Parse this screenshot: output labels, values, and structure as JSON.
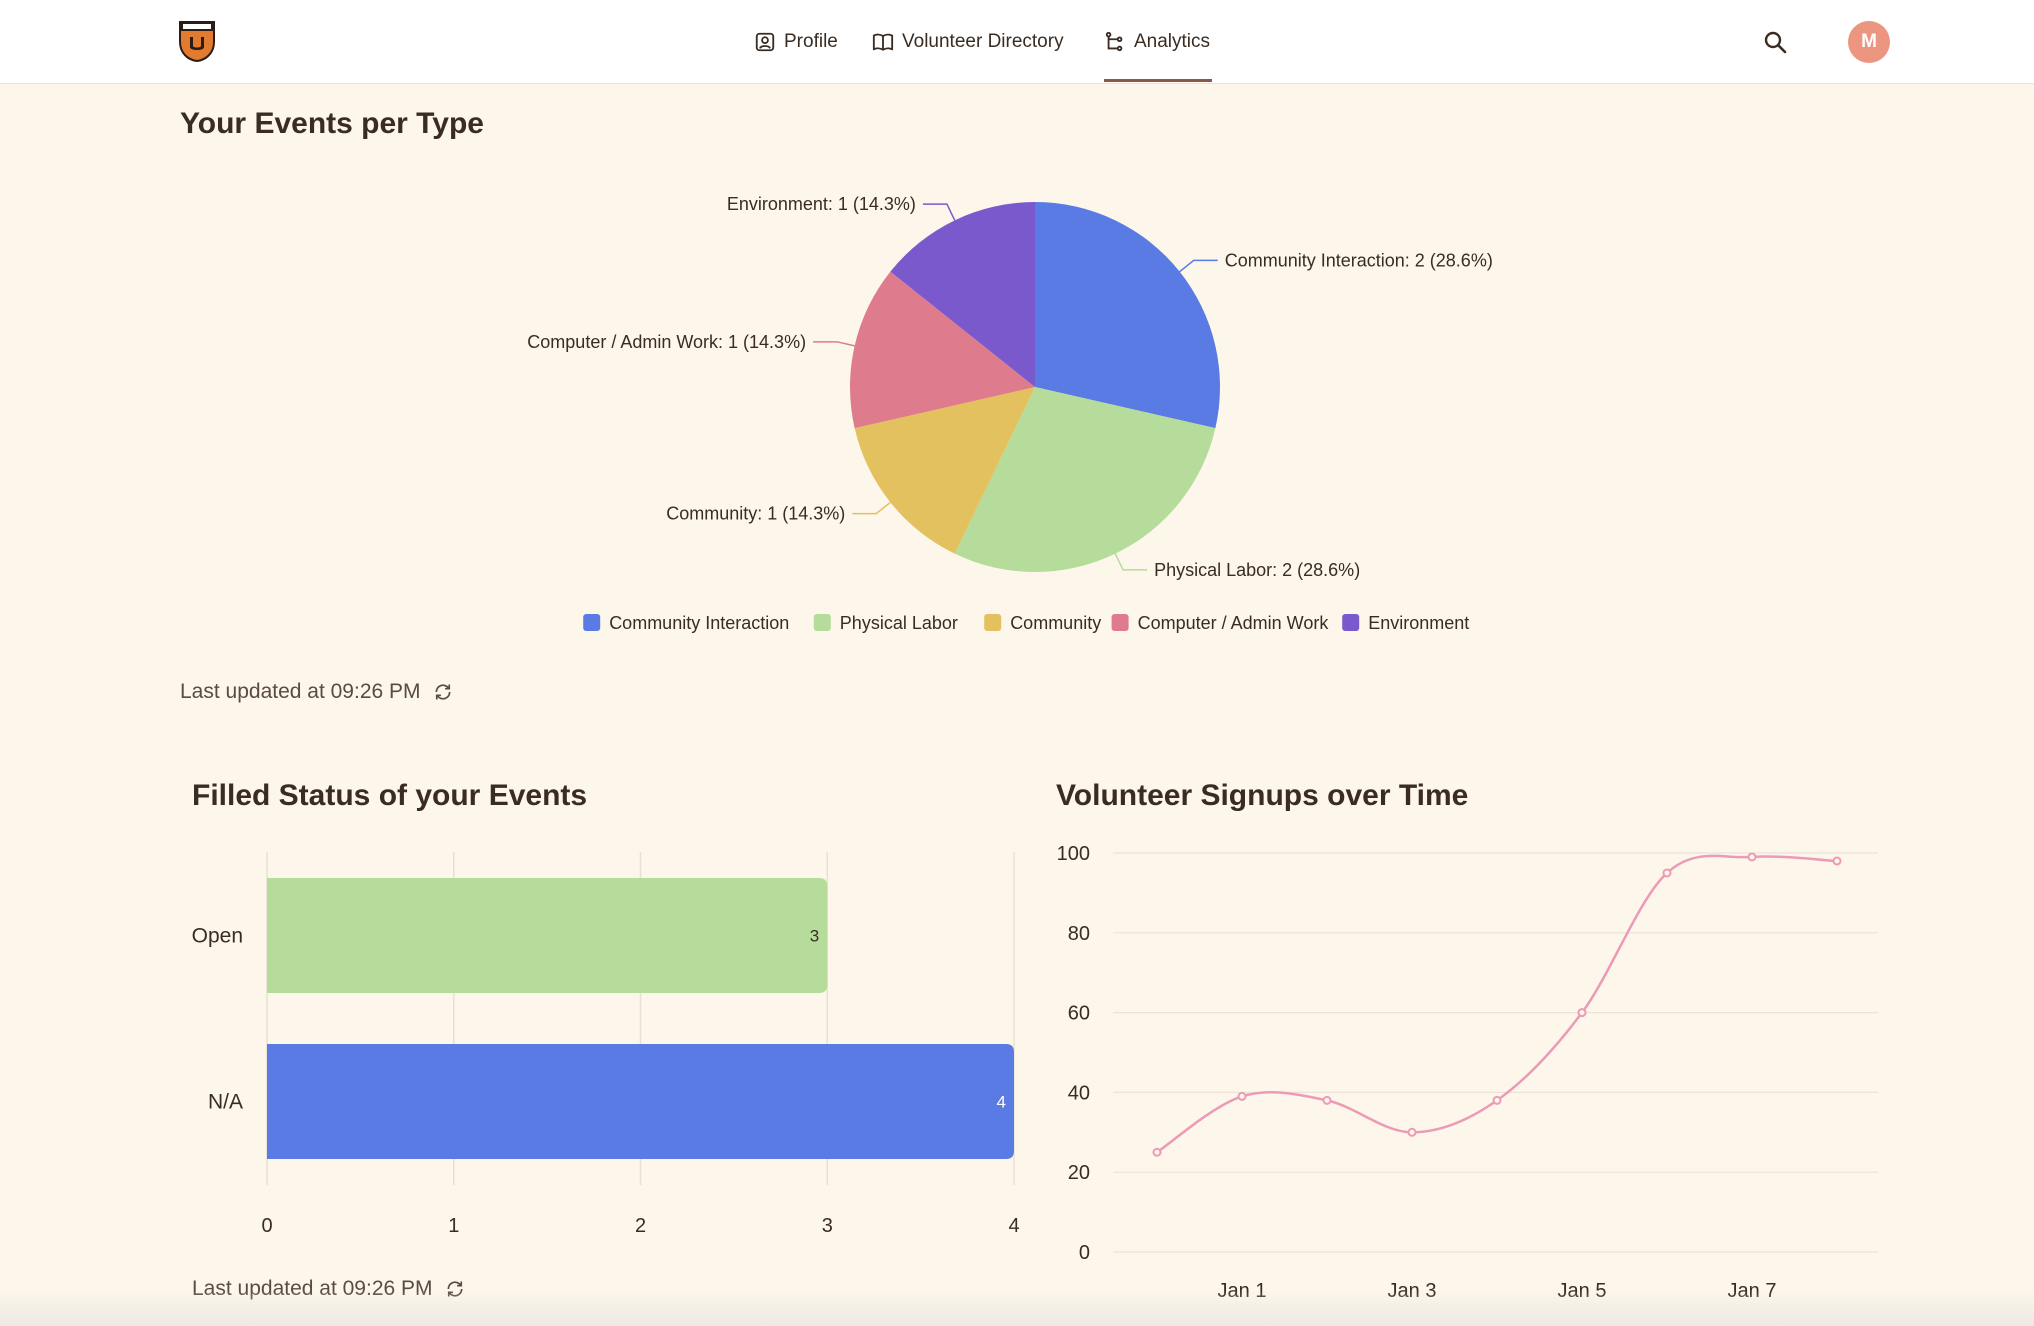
{
  "nav": {
    "profile": "Profile",
    "directory": "Volunteer Directory",
    "analytics": "Analytics"
  },
  "avatar_initial": "M",
  "pie": {
    "title": "Your Events per Type",
    "updated": "Last updated at 09:26 PM"
  },
  "bar": {
    "title": "Filled Status of your Events",
    "updated": "Last updated at 09:26 PM"
  },
  "line": {
    "title": "Volunteer Signups over Time"
  },
  "colors": {
    "accent": "#8a5a44",
    "avatar": "#ec9580",
    "background": "#fcf6eb"
  },
  "chart_data": [
    {
      "type": "pie",
      "title": "Your Events per Type",
      "slices": [
        {
          "label": "Community Interaction",
          "value": 2,
          "percent": "28.6%",
          "color": "#5a7be3"
        },
        {
          "label": "Physical Labor",
          "value": 2,
          "percent": "28.6%",
          "color": "#b5dc9a"
        },
        {
          "label": "Community",
          "value": 1,
          "percent": "14.3%",
          "color": "#e4c15f"
        },
        {
          "label": "Computer / Admin Work",
          "value": 1,
          "percent": "14.3%",
          "color": "#de7b8d"
        },
        {
          "label": "Environment",
          "value": 1,
          "percent": "14.3%",
          "color": "#7959cc"
        }
      ],
      "legend": "bottom"
    },
    {
      "type": "bar",
      "orientation": "horizontal",
      "title": "Filled Status of your Events",
      "categories": [
        "Open",
        "N/A"
      ],
      "values": [
        3,
        4
      ],
      "colors": [
        "#b5dc9a",
        "#5a7be3"
      ],
      "xlim": [
        0,
        4
      ],
      "xticks": [
        0,
        1,
        2,
        3,
        4
      ],
      "grid": true
    },
    {
      "type": "line",
      "title": "Volunteer Signups over Time",
      "x": [
        "Dec 31",
        "Jan 1",
        "Jan 2",
        "Jan 3",
        "Jan 4",
        "Jan 5",
        "Jan 6",
        "Jan 7",
        "Jan 8"
      ],
      "values": [
        25,
        39,
        38,
        30,
        38,
        60,
        95,
        99,
        98
      ],
      "xtick_labels": [
        "Jan 1",
        "Jan 3",
        "Jan 5",
        "Jan 7"
      ],
      "ylim": [
        0,
        100
      ],
      "yticks": [
        0,
        20,
        40,
        60,
        80,
        100
      ],
      "color": "#ec9ab6",
      "grid": true
    }
  ]
}
